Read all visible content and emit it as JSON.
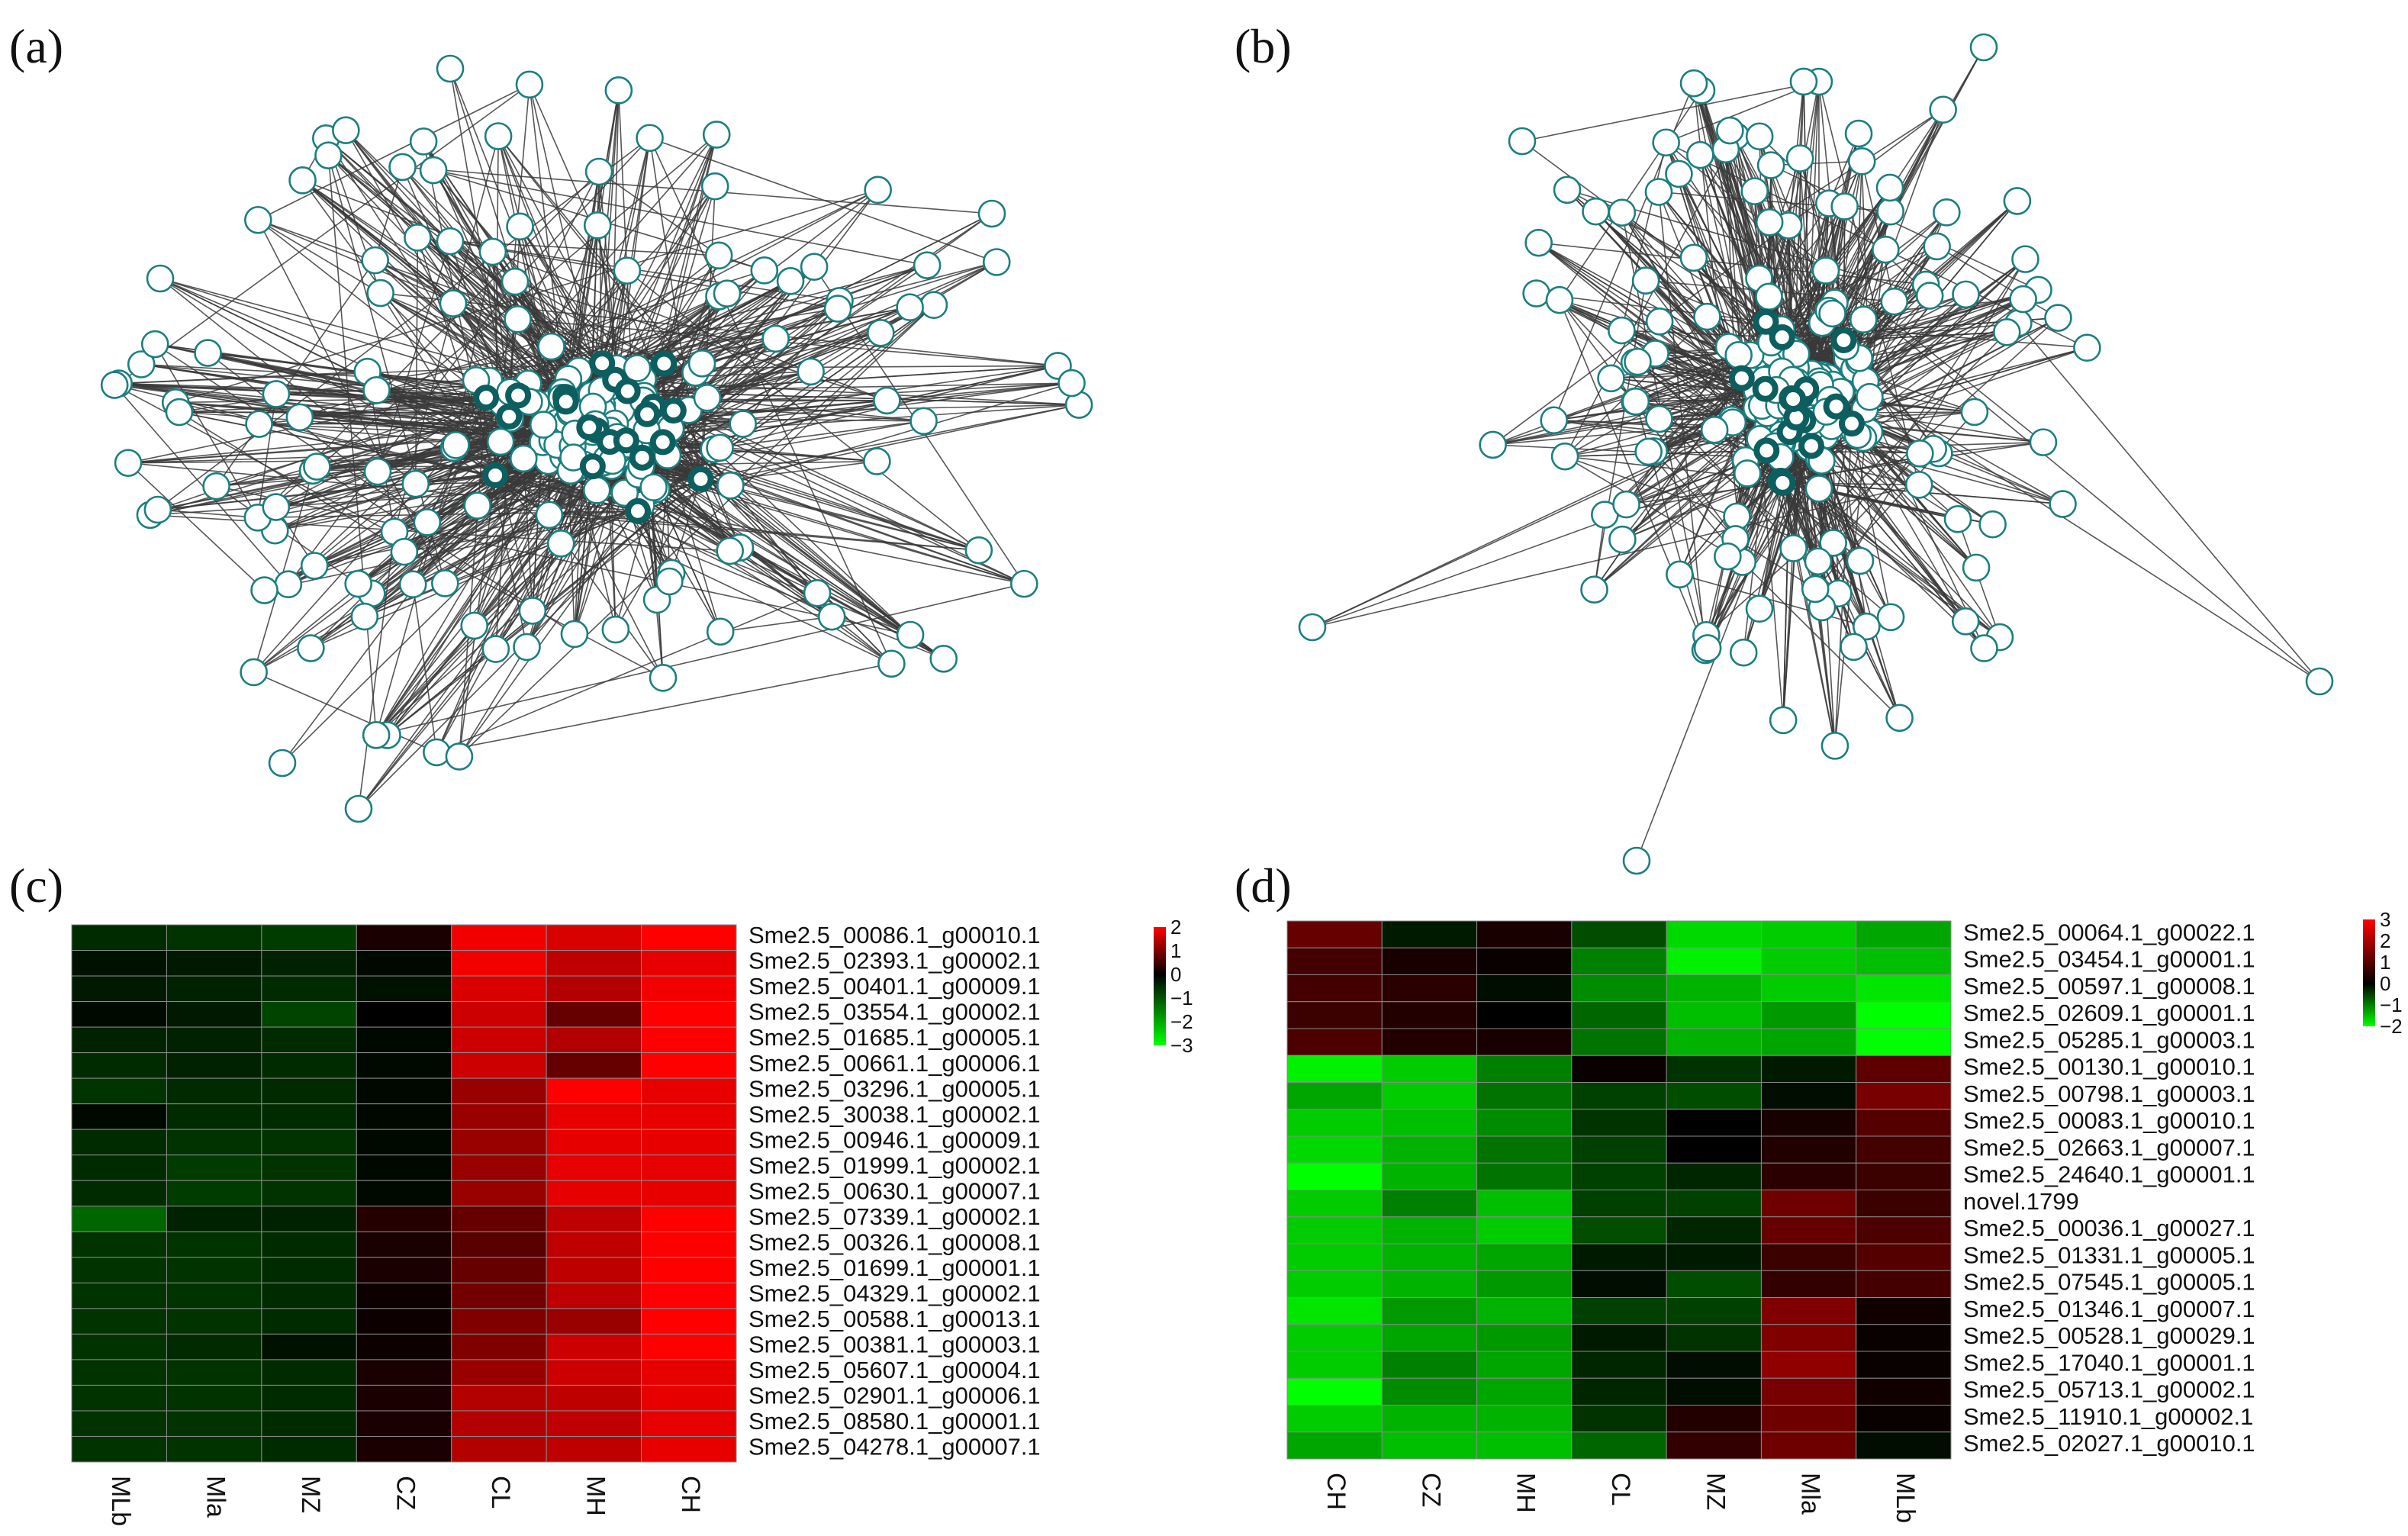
{
  "panels": {
    "a": {
      "label": "(a)"
    },
    "b": {
      "label": "(b)"
    },
    "c": {
      "label": "(c)"
    },
    "d": {
      "label": "(d)"
    }
  },
  "colors": {
    "node_fill": "#ffffff",
    "node_stroke": "#1b7f80",
    "hub_stroke": "#0d5f5f",
    "edge": "#3a3a3a",
    "heat_low": "#00ff00",
    "heat_mid": "#000000",
    "heat_high": "#ff0000",
    "grid_line": "#8a8a8a"
  },
  "networks": {
    "a": {
      "type": "network",
      "node_count": 240,
      "hub_count": 22,
      "seed": 11
    },
    "b": {
      "type": "network",
      "node_count": 230,
      "hub_count": 18,
      "seed": 29
    }
  },
  "chart_data": [
    {
      "type": "heatmap",
      "panel": "c",
      "columns": [
        "MLb",
        "Mla",
        "MZ",
        "CZ",
        "CL",
        "MH",
        "CH"
      ],
      "rows": [
        "Sme2.5_00086.1_g00010.1",
        "Sme2.5_02393.1_g00002.1",
        "Sme2.5_00401.1_g00009.1",
        "Sme2.5_03554.1_g00002.1",
        "Sme2.5_01685.1_g00005.1",
        "Sme2.5_00661.1_g00006.1",
        "Sme2.5_03296.1_g00005.1",
        "Sme2.5_30038.1_g00002.1",
        "Sme2.5_00946.1_g00009.1",
        "Sme2.5_01999.1_g00002.1",
        "Sme2.5_00630.1_g00007.1",
        "Sme2.5_07339.1_g00002.1",
        "Sme2.5_00326.1_g00008.1",
        "Sme2.5_01699.1_g00001.1",
        "Sme2.5_04329.1_g00002.1",
        "Sme2.5_00588.1_g00013.1",
        "Sme2.5_00381.1_g00003.1",
        "Sme2.5_05607.1_g00004.1",
        "Sme2.5_02901.1_g00006.1",
        "Sme2.5_08580.1_g00001.1",
        "Sme2.5_04278.1_g00007.1"
      ],
      "values": [
        [
          -0.5,
          -0.6,
          -0.7,
          0.2,
          1.9,
          1.7,
          2.0
        ],
        [
          -0.2,
          -0.3,
          -0.4,
          -0.1,
          1.9,
          1.5,
          1.8
        ],
        [
          -0.3,
          -0.4,
          -0.5,
          -0.2,
          1.7,
          1.4,
          1.9
        ],
        [
          -0.1,
          -0.3,
          -0.8,
          0.0,
          1.6,
          0.8,
          2.0
        ],
        [
          -0.4,
          -0.4,
          -0.5,
          -0.1,
          1.6,
          1.4,
          2.0
        ],
        [
          -0.5,
          -0.4,
          -0.5,
          -0.1,
          1.6,
          0.8,
          2.0
        ],
        [
          -0.6,
          -0.5,
          -0.5,
          -0.1,
          1.2,
          2.0,
          1.8
        ],
        [
          -0.1,
          -0.5,
          -0.5,
          -0.1,
          1.2,
          1.8,
          1.8
        ],
        [
          -0.5,
          -0.6,
          -0.6,
          -0.1,
          1.2,
          1.8,
          1.8
        ],
        [
          -0.5,
          -0.7,
          -0.6,
          -0.1,
          1.2,
          1.8,
          1.8
        ],
        [
          -0.5,
          -0.7,
          -0.6,
          -0.1,
          1.2,
          1.8,
          1.8
        ],
        [
          -1.2,
          -0.4,
          -0.4,
          0.3,
          0.8,
          1.5,
          2.0
        ],
        [
          -0.6,
          -0.6,
          -0.5,
          0.2,
          0.7,
          1.5,
          2.0
        ],
        [
          -0.6,
          -0.6,
          -0.5,
          0.2,
          0.8,
          1.5,
          2.0
        ],
        [
          -0.6,
          -0.6,
          -0.5,
          0.1,
          0.9,
          1.5,
          2.0
        ],
        [
          -0.6,
          -0.6,
          -0.5,
          0.1,
          1.0,
          1.2,
          2.0
        ],
        [
          -0.6,
          -0.5,
          -0.2,
          0.1,
          1.0,
          1.6,
          2.0
        ],
        [
          -0.6,
          -0.6,
          -0.5,
          0.2,
          1.2,
          1.6,
          1.8
        ],
        [
          -0.6,
          -0.6,
          -0.5,
          0.2,
          1.4,
          1.5,
          1.8
        ],
        [
          -0.6,
          -0.6,
          -0.5,
          0.2,
          1.4,
          1.5,
          1.8
        ],
        [
          -0.6,
          -0.6,
          -0.5,
          0.2,
          1.4,
          1.5,
          1.8
        ]
      ],
      "color_scale": {
        "min": -3,
        "max": 2,
        "ticks": [
          "2",
          "1",
          "0",
          "−1",
          "−2",
          "−3"
        ],
        "tick_values": [
          2,
          1,
          0,
          -1,
          -2,
          -3
        ]
      }
    },
    {
      "type": "heatmap",
      "panel": "d",
      "columns": [
        "CH",
        "CZ",
        "MH",
        "CL",
        "MZ",
        "Mla",
        "MLb"
      ],
      "rows": [
        "Sme2.5_00064.1_g00022.1",
        "Sme2.5_03454.1_g00001.1",
        "Sme2.5_00597.1_g00008.1",
        "Sme2.5_02609.1_g00001.1",
        "Sme2.5_05285.1_g00003.1",
        "Sme2.5_00130.1_g00010.1",
        "Sme2.5_00798.1_g00003.1",
        "Sme2.5_00083.1_g00010.1",
        "Sme2.5_02663.1_g00007.1",
        "Sme2.5_24640.1_g00001.1",
        "novel.1799",
        "Sme2.5_00036.1_g00027.1",
        "Sme2.5_01331.1_g00005.1",
        "Sme2.5_07545.1_g00005.1",
        "Sme2.5_01346.1_g00007.1",
        "Sme2.5_00528.1_g00029.1",
        "Sme2.5_17040.1_g00001.1",
        "Sme2.5_05713.1_g00002.1",
        "Sme2.5_11910.1_g00002.1",
        "Sme2.5_02027.1_g00010.1"
      ],
      "values": [
        [
          1.2,
          -0.2,
          0.3,
          -0.6,
          -1.7,
          -1.6,
          -1.3
        ],
        [
          0.8,
          0.3,
          0.1,
          -1.0,
          -1.9,
          -1.6,
          -1.5
        ],
        [
          0.8,
          0.5,
          -0.1,
          -1.1,
          -1.4,
          -1.6,
          -1.8
        ],
        [
          0.7,
          0.4,
          0.0,
          -0.8,
          -1.5,
          -1.2,
          -2.0
        ],
        [
          0.9,
          0.4,
          0.3,
          -0.9,
          -1.4,
          -1.3,
          -2.0
        ],
        [
          -1.9,
          -1.6,
          -1.0,
          0.1,
          -0.4,
          -0.2,
          1.1
        ],
        [
          -1.3,
          -1.6,
          -0.9,
          -0.5,
          -0.6,
          -0.1,
          1.4
        ],
        [
          -1.6,
          -1.5,
          -1.1,
          -0.4,
          0.0,
          0.3,
          1.0
        ],
        [
          -1.7,
          -1.4,
          -0.9,
          -0.5,
          0.0,
          0.4,
          0.8
        ],
        [
          -2.0,
          -1.4,
          -0.9,
          -0.5,
          -0.3,
          0.5,
          0.7
        ],
        [
          -1.6,
          -1.0,
          -1.5,
          -0.5,
          -0.5,
          1.3,
          0.7
        ],
        [
          -1.6,
          -1.4,
          -1.6,
          -0.6,
          -0.3,
          1.2,
          0.9
        ],
        [
          -1.6,
          -1.4,
          -1.3,
          -0.2,
          -0.2,
          0.7,
          1.0
        ],
        [
          -1.6,
          -1.4,
          -1.2,
          -0.1,
          -0.6,
          0.6,
          0.8
        ],
        [
          -1.8,
          -1.2,
          -1.4,
          -0.5,
          -0.5,
          1.5,
          0.2
        ],
        [
          -1.6,
          -1.3,
          -1.2,
          -0.2,
          -0.4,
          1.5,
          0.1
        ],
        [
          -1.6,
          -1.0,
          -1.3,
          -0.3,
          -0.1,
          1.7,
          0.1
        ],
        [
          -2.0,
          -1.1,
          -1.3,
          -0.3,
          -0.1,
          1.4,
          0.2
        ],
        [
          -1.6,
          -1.4,
          -1.4,
          -0.4,
          0.4,
          1.3,
          0.1
        ],
        [
          -1.3,
          -1.5,
          -1.5,
          -0.8,
          0.6,
          1.3,
          -0.1
        ]
      ],
      "color_scale": {
        "min": -2,
        "max": 3,
        "ticks": [
          "3",
          "2",
          "1",
          "0",
          "−1",
          "−2"
        ],
        "tick_values": [
          3,
          2,
          1,
          0,
          -1,
          -2
        ]
      }
    }
  ]
}
